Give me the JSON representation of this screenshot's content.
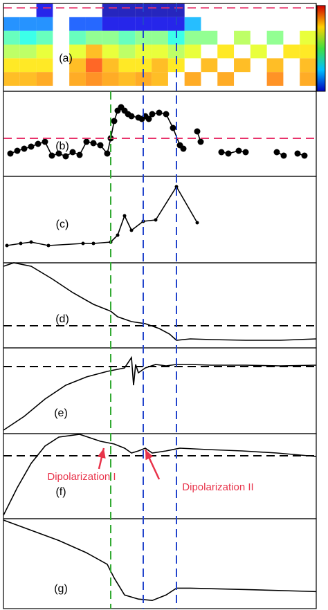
{
  "chart_data": [
    {
      "type": "heatmap",
      "label": "(a)",
      "z": [
        [
          null,
          null,
          0.1,
          null,
          null,
          null,
          0.05,
          0.05,
          0.05,
          0.05,
          0.05,
          null,
          null,
          null,
          null,
          null,
          null,
          null,
          null
        ],
        [
          0.25,
          0.25,
          0.25,
          null,
          0.2,
          0.2,
          0.1,
          0.1,
          0.1,
          0.1,
          0.1,
          0.3,
          null,
          null,
          null,
          null,
          null,
          null,
          null
        ],
        [
          0.45,
          0.4,
          0.45,
          null,
          0.45,
          0.5,
          0.5,
          0.45,
          0.5,
          0.5,
          0.4,
          0.5,
          0.5,
          null,
          0.55,
          null,
          0.5,
          null,
          0.6
        ],
        [
          0.55,
          0.55,
          0.6,
          null,
          0.6,
          0.7,
          0.6,
          0.55,
          0.6,
          0.6,
          0.55,
          0.6,
          null,
          0.65,
          null,
          0.6,
          null,
          0.65,
          0.65
        ],
        [
          0.65,
          0.65,
          0.65,
          null,
          0.7,
          0.8,
          0.7,
          0.65,
          0.65,
          0.7,
          0.65,
          null,
          0.7,
          null,
          0.7,
          null,
          0.7,
          null,
          0.7
        ],
        [
          0.7,
          0.7,
          0.72,
          null,
          0.72,
          0.75,
          0.72,
          0.7,
          0.72,
          0.7,
          null,
          0.72,
          null,
          0.72,
          null,
          null,
          0.75,
          null,
          0.72
        ]
      ],
      "hlines": [
        {
          "value": 0.95,
          "color": "#e8336b"
        }
      ],
      "ylim": [
        0,
        1
      ]
    },
    {
      "type": "line",
      "label": "(b)",
      "markers": true,
      "color": "#000000",
      "x": [
        10,
        20,
        30,
        40,
        50,
        60,
        70,
        80,
        90,
        100,
        110,
        120,
        130,
        140,
        150,
        155,
        160,
        165,
        170,
        175,
        180,
        185,
        195,
        200,
        205,
        210,
        215,
        225,
        235,
        245,
        255,
        260,
        270,
        280,
        285,
        300,
        315,
        325,
        340,
        350,
        370,
        395,
        405,
        415,
        425,
        435
      ],
      "values": [
        33,
        37,
        40,
        43,
        47,
        50,
        30,
        33,
        29,
        35,
        31,
        50,
        48,
        45,
        33,
        55,
        80,
        95,
        100,
        95,
        90,
        87,
        85,
        83,
        87,
        83,
        90,
        92,
        90,
        70,
        45,
        40,
        null,
        65,
        50,
        null,
        35,
        33,
        37,
        35,
        null,
        35,
        30,
        null,
        33,
        30
      ],
      "ylim": [
        0,
        123
      ],
      "hlines": [
        {
          "value": 55,
          "color": "#e8336b"
        }
      ]
    },
    {
      "type": "line",
      "label": "(c)",
      "markers": true,
      "small": true,
      "color": "#000000",
      "x": [
        5,
        25,
        40,
        65,
        115,
        130,
        155,
        165,
        175,
        185,
        202,
        220,
        250,
        280
      ],
      "values": [
        25,
        28,
        30,
        25,
        28,
        28,
        30,
        40,
        68,
        47,
        60,
        62,
        110,
        58
      ],
      "ylim": [
        0,
        125
      ]
    },
    {
      "type": "line",
      "label": "(d)",
      "color": "#000000",
      "x": [
        0,
        15,
        40,
        70,
        100,
        130,
        155,
        165,
        185,
        205,
        225,
        240,
        250,
        270,
        300,
        350,
        400,
        452
      ],
      "values": [
        118,
        123,
        118,
        100,
        80,
        63,
        53,
        45,
        38,
        35,
        28,
        20,
        11,
        13,
        12,
        11,
        11,
        13
      ],
      "ylim": [
        0,
        123
      ],
      "hlines": [
        {
          "value": 32,
          "color": "#000000"
        }
      ]
    },
    {
      "type": "line",
      "label": "(e)",
      "color": "#000000",
      "x": [
        0,
        30,
        60,
        90,
        120,
        150,
        160,
        175,
        185,
        188,
        191,
        195,
        205,
        220,
        235,
        250,
        270,
        300,
        350,
        400,
        452
      ],
      "values": [
        5,
        25,
        50,
        70,
        82,
        90,
        92,
        95,
        110,
        70,
        100,
        88,
        95,
        100,
        98,
        100,
        100,
        99,
        99,
        98,
        99
      ],
      "ylim": [
        0,
        124
      ],
      "hlines": [
        {
          "value": 97,
          "color": "#000000"
        }
      ]
    },
    {
      "type": "line",
      "label": "(f)",
      "color": "#000000",
      "x": [
        0,
        20,
        40,
        60,
        80,
        110,
        140,
        160,
        175,
        185,
        195,
        205,
        215,
        235,
        255,
        295,
        345,
        395,
        452
      ],
      "values": [
        5,
        45,
        80,
        105,
        118,
        122,
        112,
        108,
        102,
        95,
        98,
        102,
        95,
        98,
        102,
        100,
        98,
        95,
        90
      ],
      "ylim": [
        0,
        123
      ],
      "hlines": [
        {
          "value": 91,
          "color": "#000000"
        }
      ],
      "annotations": [
        "Dipolarization I",
        "Dipolarization II"
      ]
    },
    {
      "type": "line",
      "label": "(g)",
      "color": "#000000",
      "x": [
        0,
        40,
        80,
        120,
        150,
        160,
        175,
        195,
        215,
        235,
        250,
        270,
        350,
        452
      ],
      "values": [
        130,
        115,
        100,
        82,
        65,
        45,
        20,
        14,
        12,
        20,
        30,
        30,
        28,
        25
      ],
      "ylim": [
        0,
        132
      ]
    }
  ],
  "markers": {
    "xlim": [
      0,
      452
    ],
    "vlines": [
      {
        "value": 155,
        "color": "#33aa33",
        "from": 1
      },
      {
        "value": 202,
        "color": "#2244cc",
        "from": 0
      },
      {
        "value": 250,
        "color": "#2244cc",
        "from": 0
      }
    ]
  }
}
